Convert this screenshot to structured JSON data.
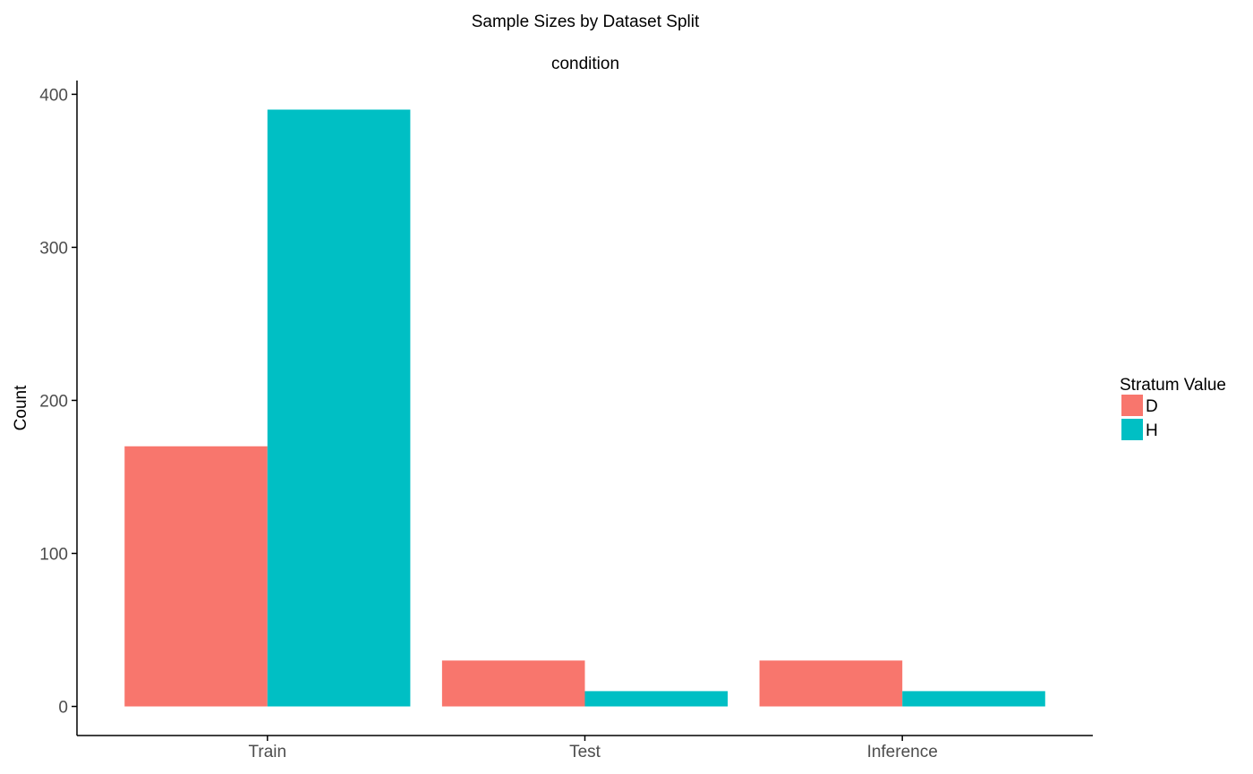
{
  "chart_data": {
    "type": "bar",
    "title": "Sample Sizes by Dataset Split",
    "subtitle": "condition",
    "xlabel": "",
    "ylabel": "Count",
    "categories": [
      "Train",
      "Test",
      "Inference"
    ],
    "series": [
      {
        "name": "D",
        "color": "#F8766D",
        "values": [
          170,
          30,
          30
        ]
      },
      {
        "name": "H",
        "color": "#00BFC4",
        "values": [
          390,
          10,
          10
        ]
      }
    ],
    "ylim": [
      -19,
      409
    ],
    "yticks": [
      0,
      100,
      200,
      300,
      400
    ],
    "grid": false,
    "legend": {
      "title": "Stratum Value",
      "placement": "right"
    }
  }
}
